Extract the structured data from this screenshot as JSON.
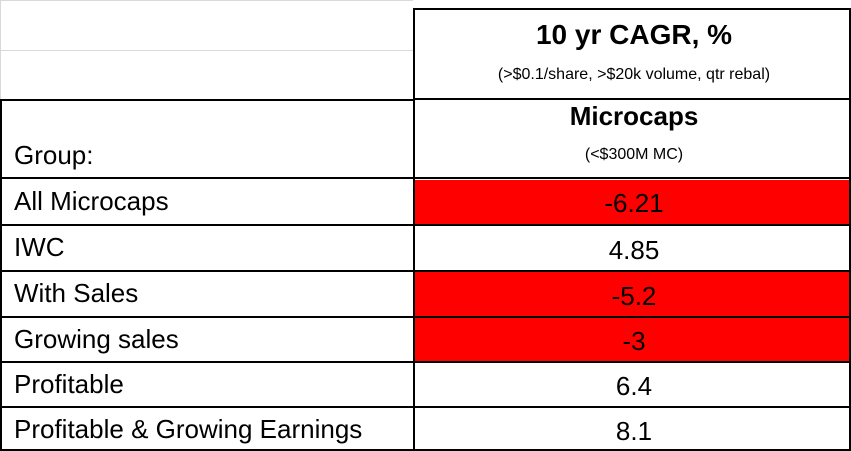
{
  "header": {
    "title": "10 yr CAGR, %",
    "subtitle": "(>$0.1/share, >$20k volume, qtr rebal)",
    "column": "Microcaps",
    "column_sub": "(<$300M MC)",
    "group_label": "Group:"
  },
  "rows": [
    {
      "label": "All Microcaps",
      "value": "-6.21",
      "highlight_color": "#ff0000"
    },
    {
      "label": "IWC",
      "value": "4.85"
    },
    {
      "label": "With Sales",
      "value": "-5.2",
      "highlight_color": "#ff0000"
    },
    {
      "label": "Growing sales",
      "value": "-3",
      "highlight_color": "#ff0000"
    },
    {
      "label": "Profitable",
      "value": "6.4"
    },
    {
      "label": "Profitable & Growing Earnings",
      "value": "8.1"
    }
  ]
}
